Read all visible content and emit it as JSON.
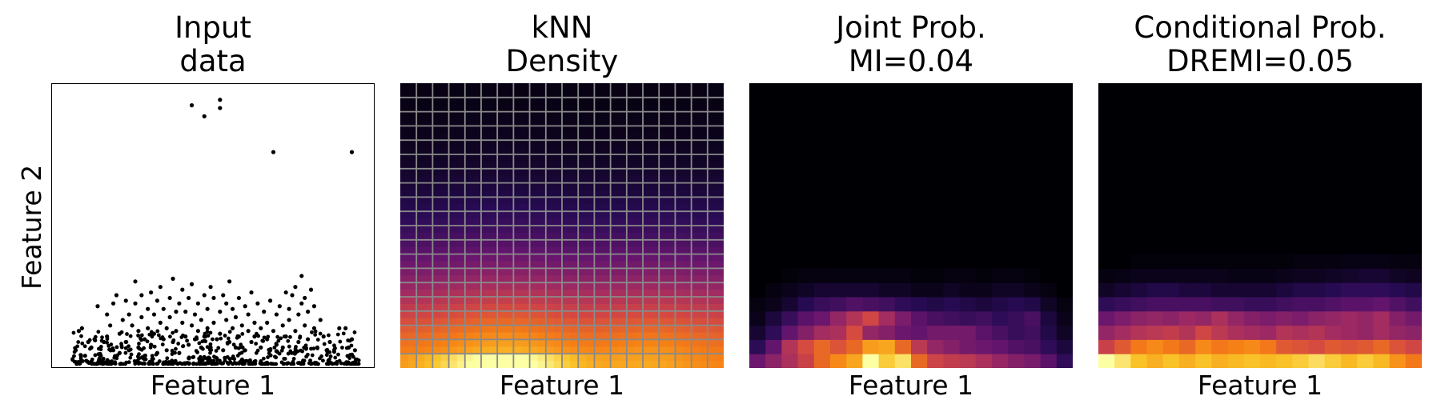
{
  "chart_data": [
    {
      "type": "scatter",
      "title": [
        "Input",
        "data"
      ],
      "xlabel": "Feature 1",
      "ylabel": "Feature 2",
      "xlim": [
        0,
        100
      ],
      "ylim": [
        0,
        100
      ],
      "ticks": "none",
      "marker_color": "#000000",
      "series": [
        {
          "outliers": [
            [
              43,
              94
            ],
            [
              47,
              90
            ],
            [
              52,
              93
            ],
            [
              52,
              96
            ],
            [
              69,
              77
            ],
            [
              94,
              77
            ]
          ],
          "bulk_note": "dense cloud concentrated near y=0 across x 5-97",
          "points": [
            [
              6,
              5
            ],
            [
              7,
              12
            ],
            [
              8,
              13
            ],
            [
              9,
              3
            ],
            [
              10,
              8
            ],
            [
              11,
              6
            ],
            [
              12,
              9
            ],
            [
              13,
              21
            ],
            [
              14,
              3
            ],
            [
              15,
              8
            ],
            [
              16,
              10
            ],
            [
              16,
              18
            ],
            [
              17,
              14
            ],
            [
              18,
              22
            ],
            [
              18,
              5
            ],
            [
              19,
              25
            ],
            [
              20,
              11
            ],
            [
              20,
              4
            ],
            [
              21,
              16
            ],
            [
              22,
              23
            ],
            [
              22,
              8
            ],
            [
              23,
              5
            ],
            [
              23,
              18
            ],
            [
              24,
              14
            ],
            [
              25,
              30
            ],
            [
              25,
              22
            ],
            [
              26,
              12
            ],
            [
              26,
              6
            ],
            [
              27,
              25
            ],
            [
              27,
              17
            ],
            [
              28,
              9
            ],
            [
              28,
              3
            ],
            [
              29,
              20
            ],
            [
              29,
              13
            ],
            [
              30,
              26
            ],
            [
              30,
              7
            ],
            [
              31,
              18
            ],
            [
              31,
              11
            ],
            [
              32,
              23
            ],
            [
              32,
              4
            ],
            [
              33,
              15
            ],
            [
              33,
              28
            ],
            [
              34,
              9
            ],
            [
              34,
              20
            ],
            [
              35,
              13
            ],
            [
              35,
              5
            ],
            [
              36,
              17
            ],
            [
              36,
              24
            ],
            [
              37,
              31
            ],
            [
              37,
              8
            ],
            [
              38,
              19
            ],
            [
              38,
              12
            ],
            [
              39,
              22
            ],
            [
              39,
              4
            ],
            [
              40,
              27
            ],
            [
              40,
              15
            ],
            [
              41,
              10
            ],
            [
              41,
              19
            ],
            [
              42,
              7
            ],
            [
              42,
              24
            ],
            [
              43,
              14
            ],
            [
              43,
              29
            ],
            [
              44,
              9
            ],
            [
              44,
              18
            ],
            [
              45,
              12
            ],
            [
              45,
              22
            ],
            [
              46,
              6
            ],
            [
              46,
              16
            ],
            [
              47,
              25
            ],
            [
              47,
              10
            ],
            [
              48,
              20
            ],
            [
              48,
              13
            ],
            [
              49,
              28
            ],
            [
              49,
              6
            ],
            [
              50,
              15
            ],
            [
              50,
              24
            ],
            [
              51,
              9
            ],
            [
              52,
              19
            ],
            [
              52,
              11
            ],
            [
              53,
              25
            ],
            [
              53,
              5
            ],
            [
              54,
              16
            ],
            [
              54,
              22
            ],
            [
              55,
              8
            ],
            [
              55,
              30
            ],
            [
              56,
              13
            ],
            [
              56,
              20
            ],
            [
              57,
              6
            ],
            [
              57,
              17
            ],
            [
              58,
              24
            ],
            [
              58,
              10
            ],
            [
              59,
              14
            ],
            [
              60,
              21
            ],
            [
              60,
              5
            ],
            [
              61,
              12
            ],
            [
              61,
              18
            ],
            [
              62,
              8
            ],
            [
              62,
              26
            ],
            [
              63,
              15
            ],
            [
              63,
              10
            ],
            [
              64,
              22
            ],
            [
              65,
              6
            ],
            [
              65,
              13
            ],
            [
              66,
              19
            ],
            [
              67,
              9
            ],
            [
              67,
              15
            ],
            [
              68,
              5
            ],
            [
              68,
              23
            ],
            [
              69,
              12
            ],
            [
              70,
              18
            ],
            [
              70,
              7
            ],
            [
              71,
              21
            ],
            [
              72,
              14
            ],
            [
              72,
              6
            ],
            [
              73,
              26
            ],
            [
              73,
              10
            ],
            [
              74,
              20
            ],
            [
              74,
              16
            ],
            [
              75,
              25
            ],
            [
              76,
              12
            ],
            [
              76,
              28
            ],
            [
              77,
              18
            ],
            [
              77,
              8
            ],
            [
              78,
              22
            ],
            [
              78,
              32
            ],
            [
              79,
              14
            ],
            [
              79,
              24
            ],
            [
              80,
              9
            ],
            [
              80,
              19
            ],
            [
              81,
              27
            ],
            [
              82,
              13
            ],
            [
              82,
              21
            ],
            [
              83,
              6
            ],
            [
              84,
              16
            ],
            [
              85,
              10
            ],
            [
              86,
              5
            ],
            [
              87,
              8
            ],
            [
              90,
              13
            ],
            [
              92,
              13
            ],
            [
              93,
              6
            ],
            [
              94,
              9
            ],
            [
              95,
              5
            ]
          ]
        }
      ]
    },
    {
      "type": "heatmap",
      "title": [
        "kNN",
        "Density"
      ],
      "xlabel": "Feature 1",
      "colormap": "inferno",
      "grid": true,
      "grid_color": "#8a8a8a",
      "grid_cols": 20,
      "grid_rows": 20,
      "resolution": 40,
      "ticks": "none"
    },
    {
      "type": "heatmap",
      "title": [
        "Joint Prob.",
        "MI=0.04"
      ],
      "xlabel": "Feature 1",
      "colormap": "inferno",
      "ticks": "none",
      "rows_bottom_up": [
        [
          0.3,
          0.38,
          0.46,
          0.54,
          0.66,
          0.74,
          0.8,
          1.0,
          0.88,
          0.93,
          0.66,
          0.55,
          0.52,
          0.5,
          0.46,
          0.41,
          0.36,
          0.33,
          0.26,
          0.16
        ],
        [
          0.15,
          0.28,
          0.48,
          0.58,
          0.66,
          0.6,
          0.66,
          0.78,
          0.8,
          0.66,
          0.5,
          0.4,
          0.36,
          0.32,
          0.3,
          0.28,
          0.24,
          0.22,
          0.16,
          0.1
        ],
        [
          0.08,
          0.16,
          0.28,
          0.36,
          0.44,
          0.46,
          0.58,
          0.4,
          0.36,
          0.3,
          0.28,
          0.32,
          0.32,
          0.32,
          0.26,
          0.22,
          0.18,
          0.2,
          0.12,
          0.06
        ],
        [
          0.04,
          0.1,
          0.18,
          0.26,
          0.3,
          0.4,
          0.48,
          0.56,
          0.44,
          0.34,
          0.26,
          0.22,
          0.2,
          0.18,
          0.2,
          0.16,
          0.18,
          0.22,
          0.1,
          0.04
        ],
        [
          0.02,
          0.04,
          0.08,
          0.14,
          0.18,
          0.2,
          0.24,
          0.22,
          0.2,
          0.16,
          0.14,
          0.12,
          0.14,
          0.12,
          0.1,
          0.12,
          0.14,
          0.12,
          0.06,
          0.02
        ],
        [
          0.0,
          0.02,
          0.04,
          0.06,
          0.08,
          0.08,
          0.08,
          0.08,
          0.06,
          0.06,
          0.04,
          0.04,
          0.06,
          0.04,
          0.04,
          0.06,
          0.06,
          0.04,
          0.02,
          0.0
        ],
        [
          0,
          0,
          0.01,
          0.02,
          0.02,
          0.02,
          0.02,
          0.02,
          0.02,
          0.02,
          0.01,
          0.01,
          0.02,
          0.02,
          0.01,
          0.02,
          0.02,
          0.01,
          0,
          0
        ]
      ],
      "total_rows": 20
    },
    {
      "type": "heatmap",
      "title": [
        "Conditional Prob.",
        "DREMI=0.05"
      ],
      "xlabel": "Feature 1",
      "colormap": "inferno",
      "ticks": "none",
      "rows_bottom_up": [
        [
          1.0,
          0.94,
          0.86,
          0.82,
          0.86,
          0.82,
          0.86,
          0.82,
          0.84,
          0.86,
          0.84,
          0.86,
          0.88,
          0.92,
          0.88,
          0.84,
          0.88,
          0.84,
          0.76,
          0.7
        ],
        [
          0.54,
          0.62,
          0.7,
          0.74,
          0.7,
          0.66,
          0.74,
          0.7,
          0.72,
          0.74,
          0.7,
          0.62,
          0.6,
          0.58,
          0.62,
          0.6,
          0.62,
          0.66,
          0.6,
          0.56
        ],
        [
          0.4,
          0.44,
          0.48,
          0.5,
          0.52,
          0.48,
          0.56,
          0.5,
          0.46,
          0.44,
          0.42,
          0.48,
          0.46,
          0.48,
          0.44,
          0.42,
          0.4,
          0.44,
          0.4,
          0.38
        ],
        [
          0.3,
          0.34,
          0.38,
          0.4,
          0.38,
          0.42,
          0.4,
          0.46,
          0.4,
          0.36,
          0.34,
          0.36,
          0.34,
          0.38,
          0.4,
          0.42,
          0.4,
          0.44,
          0.36,
          0.32
        ],
        [
          0.16,
          0.18,
          0.2,
          0.22,
          0.22,
          0.22,
          0.22,
          0.2,
          0.2,
          0.18,
          0.18,
          0.2,
          0.22,
          0.22,
          0.24,
          0.26,
          0.26,
          0.28,
          0.24,
          0.2
        ],
        [
          0.06,
          0.08,
          0.1,
          0.12,
          0.12,
          0.1,
          0.1,
          0.08,
          0.08,
          0.08,
          0.08,
          0.1,
          0.12,
          0.12,
          0.14,
          0.16,
          0.16,
          0.16,
          0.14,
          0.12
        ],
        [
          0.02,
          0.03,
          0.04,
          0.04,
          0.04,
          0.04,
          0.04,
          0.04,
          0.03,
          0.03,
          0.03,
          0.04,
          0.05,
          0.05,
          0.06,
          0.07,
          0.08,
          0.08,
          0.06,
          0.05
        ],
        [
          0,
          0,
          0.01,
          0.01,
          0.01,
          0.01,
          0.01,
          0.01,
          0.01,
          0.01,
          0.01,
          0.01,
          0.02,
          0.02,
          0.02,
          0.03,
          0.03,
          0.03,
          0.02,
          0.02
        ]
      ],
      "total_rows": 20
    }
  ]
}
